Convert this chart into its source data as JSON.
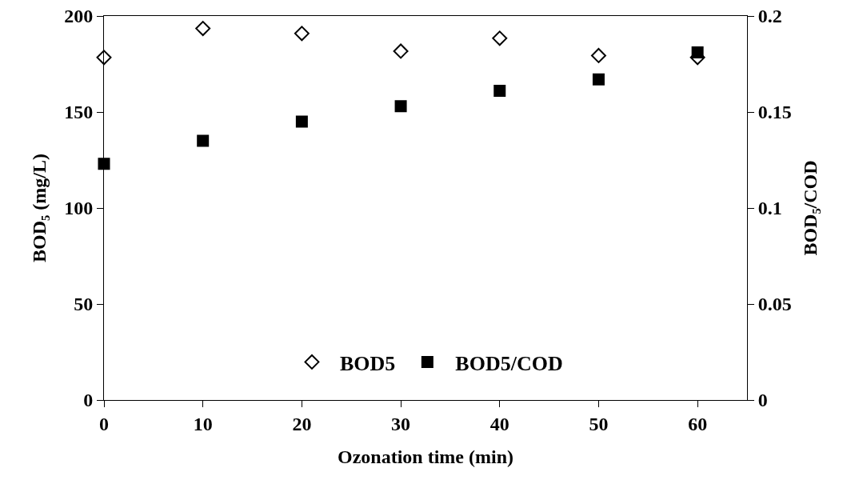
{
  "chart_data": {
    "type": "scatter",
    "xlabel": "Ozonation time (min)",
    "ylabel": "BOD₅ (mg/L)",
    "y2label": "BOD₅/COD",
    "x": [
      0,
      10,
      20,
      30,
      40,
      50,
      60
    ],
    "series": [
      {
        "name": "BOD5",
        "color": "#000000",
        "marker": "diamond-open",
        "values": [
          178.4,
          193.5,
          190.9,
          181.7,
          188.4,
          179.4,
          178.4
        ]
      },
      {
        "name": "BOD5/COD",
        "color": "#000000",
        "marker": "square",
        "axis": "y2",
        "values": [
          0.123,
          0.135,
          0.145,
          0.153,
          0.161,
          0.167,
          0.181
        ]
      }
    ],
    "xlim": [
      0,
      65
    ],
    "xticks": [
      0,
      10,
      20,
      30,
      40,
      50,
      60
    ],
    "ylim": [
      0,
      200
    ],
    "yticks": [
      0,
      50,
      100,
      150,
      200
    ],
    "y2lim": [
      0,
      0.2
    ],
    "y2ticks": [
      0,
      0.05,
      0.1,
      0.15,
      0.2
    ],
    "grid": false,
    "legend": "bottom"
  }
}
